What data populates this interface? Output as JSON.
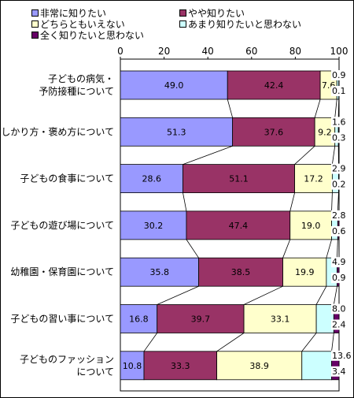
{
  "chart_data": {
    "type": "bar",
    "orientation": "horizontal",
    "stacked": "percent",
    "xlim": [
      0,
      100
    ],
    "x_ticks": [
      "0",
      "20",
      "40",
      "60",
      "80",
      "100"
    ],
    "legend_position": "top",
    "categories": [
      [
        "子どもの病気・",
        "予防接種について"
      ],
      [
        "しかり方・褒め方について"
      ],
      [
        "子どもの食事について"
      ],
      [
        "子どもの遊び場について"
      ],
      [
        "幼稚園・保育園について"
      ],
      [
        "子どもの習い事について"
      ],
      [
        "子どものファッション",
        "について"
      ]
    ],
    "series": [
      {
        "name": "非常に知りたい",
        "color": "#9999ff",
        "values": [
          49.0,
          51.3,
          28.6,
          30.2,
          35.8,
          16.8,
          10.8
        ]
      },
      {
        "name": "やや知りたい",
        "color": "#993366",
        "values": [
          42.4,
          37.6,
          51.1,
          47.4,
          38.5,
          39.7,
          33.3
        ]
      },
      {
        "name": "どちらともいえない",
        "color": "#ffffcc",
        "values": [
          7.6,
          9.2,
          17.2,
          19.0,
          19.9,
          33.1,
          38.9
        ]
      },
      {
        "name": "あまり知りたいと思わない",
        "color": "#ccffff",
        "values": [
          0.9,
          1.6,
          2.9,
          2.8,
          4.9,
          8.0,
          13.6
        ]
      },
      {
        "name": "全く知りたいと思わない",
        "color": "#660066",
        "values": [
          0.1,
          0.3,
          0.2,
          0.6,
          0.9,
          2.4,
          3.4
        ]
      }
    ]
  }
}
